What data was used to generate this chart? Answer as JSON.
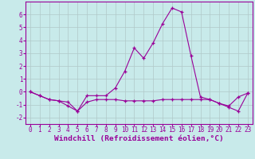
{
  "xlabel": "Windchill (Refroidissement éolien,°C)",
  "hours": [
    0,
    1,
    2,
    3,
    4,
    5,
    6,
    7,
    8,
    9,
    10,
    11,
    12,
    13,
    14,
    15,
    16,
    17,
    18,
    19,
    20,
    21,
    22,
    23
  ],
  "line1": [
    0.0,
    -0.3,
    -0.6,
    -0.7,
    -1.1,
    -1.5,
    -0.3,
    -0.3,
    -0.3,
    0.3,
    1.6,
    3.4,
    2.6,
    3.8,
    5.3,
    6.5,
    6.2,
    2.8,
    -0.4,
    -0.6,
    -0.9,
    -1.2,
    -1.5,
    -0.1
  ],
  "line2": [
    0.0,
    -0.3,
    -0.6,
    -0.7,
    -0.8,
    -1.5,
    -0.8,
    -0.6,
    -0.6,
    -0.6,
    -0.7,
    -0.7,
    -0.7,
    -0.7,
    -0.6,
    -0.6,
    -0.6,
    -0.6,
    -0.6,
    -0.6,
    -0.9,
    -1.1,
    -0.4,
    -0.1
  ],
  "line_color": "#990099",
  "bg_color": "#c8eaea",
  "grid_color": "#b0c8c8",
  "ylim": [
    -2.5,
    7.0
  ],
  "yticks": [
    -2,
    -1,
    0,
    1,
    2,
    3,
    4,
    5,
    6
  ],
  "xticks": [
    0,
    1,
    2,
    3,
    4,
    5,
    6,
    7,
    8,
    9,
    10,
    11,
    12,
    13,
    14,
    15,
    16,
    17,
    18,
    19,
    20,
    21,
    22,
    23
  ],
  "tick_label_fontsize": 5.5,
  "xlabel_fontsize": 6.8,
  "marker": "+"
}
